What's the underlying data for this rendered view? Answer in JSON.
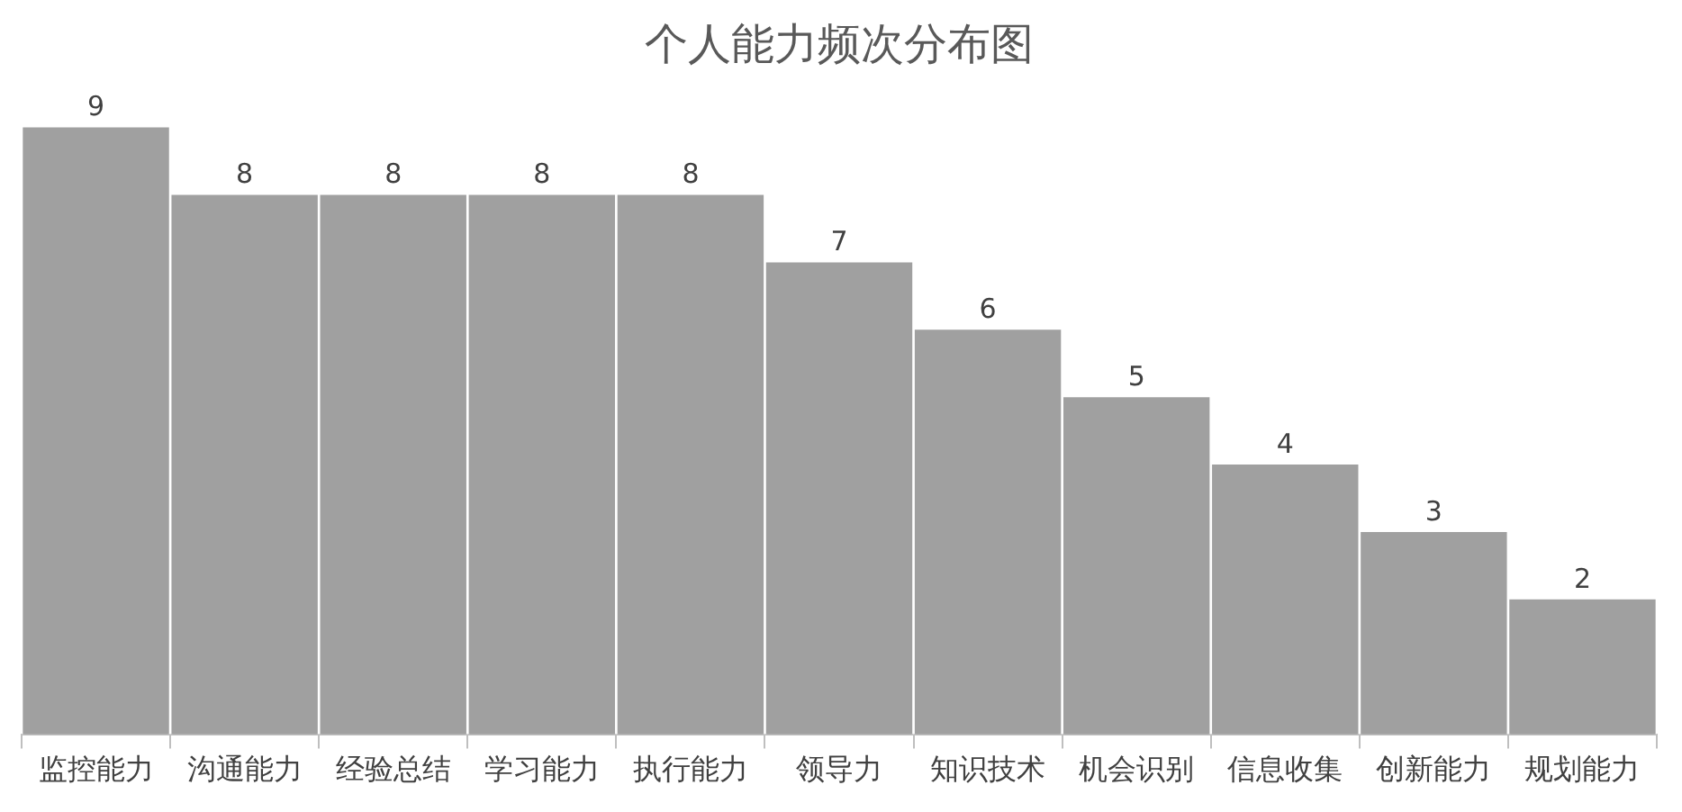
{
  "chart_data": {
    "type": "bar",
    "title": "个人能力频次分布图",
    "categories": [
      "监控能力",
      "沟通能力",
      "经验总结",
      "学习能力",
      "执行能力",
      "领导力",
      "知识技术",
      "机会识别",
      "信息收集",
      "创新能力",
      "规划能力"
    ],
    "values": [
      9,
      8,
      8,
      8,
      8,
      7,
      6,
      5,
      4,
      3,
      2
    ],
    "color": "#a0a0a0",
    "data_labels": true,
    "grid": false,
    "legend": false,
    "tick_labels": "x"
  }
}
